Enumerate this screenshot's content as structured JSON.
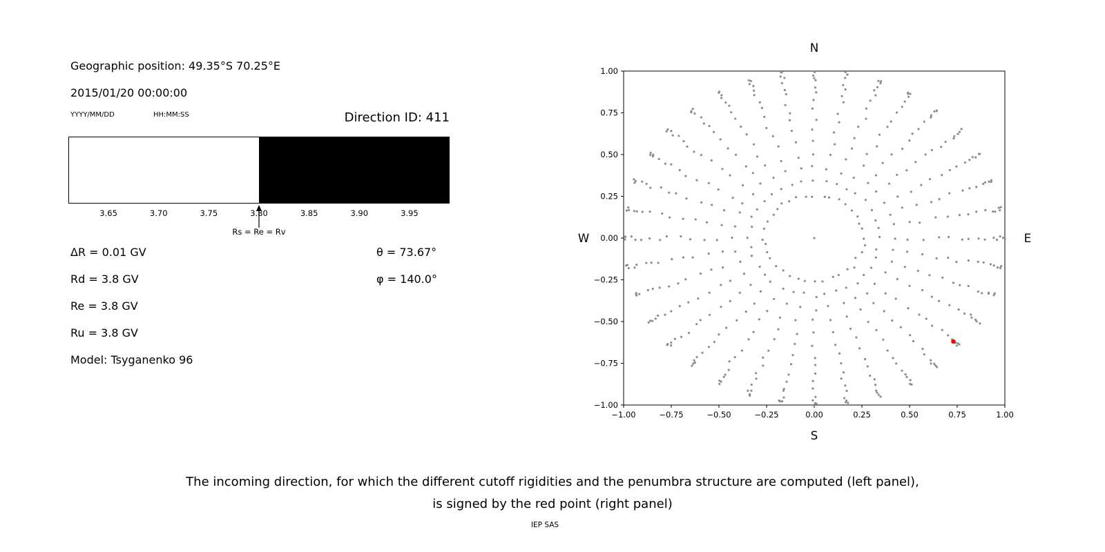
{
  "page": {
    "background": "#ffffff",
    "credit": "IEP SAS"
  },
  "left_panel": {
    "geo_position": "Geographic position: 49.35°S 70.25°E",
    "datetime": "2015/01/20 00:00:00",
    "date_format_label": "YYYY/MM/DD",
    "time_format_label": "HH:MM:SS",
    "direction_id": "Direction ID: 411",
    "params": {
      "delta_r": "ΔR = 0.01 GV",
      "rd": "Rd = 3.8 GV",
      "re": "Re = 3.8 GV",
      "ru": "Ru = 3.8 GV",
      "model": "Model: Tsyganenko 96",
      "theta": "θ = 73.67°",
      "phi": "φ = 140.0°"
    }
  },
  "right_panel": {
    "compass": {
      "north": "N",
      "south": "S",
      "west": "W",
      "east": "E"
    }
  },
  "caption": {
    "line1": "The incoming direction, for which the different cutoff rigidities and the penumbra structure are computed (left panel),",
    "line2": "is signed by the red point (right panel)"
  },
  "chart_data": [
    {
      "type": "area",
      "name": "penumbra-structure",
      "x_range": [
        3.61,
        3.99
      ],
      "tick_values": [
        3.65,
        3.7,
        3.75,
        3.8,
        3.85,
        3.9,
        3.95
      ],
      "tick_labels": [
        "3.65",
        "3.70",
        "3.75",
        "3.80",
        "3.85",
        "3.90",
        "3.95"
      ],
      "regions": [
        {
          "from": 3.61,
          "to": 3.8,
          "color": "#ffffff"
        },
        {
          "from": 3.8,
          "to": 3.99,
          "color": "#000000"
        }
      ],
      "annotation": {
        "x": 3.8,
        "label": "Rs = Re = Rv"
      }
    },
    {
      "type": "scatter",
      "name": "incoming-directions",
      "xlim": [
        -1.0,
        1.0
      ],
      "ylim": [
        -1.0,
        1.0
      ],
      "x_tick_values": [
        -1.0,
        -0.75,
        -0.5,
        -0.25,
        0.0,
        0.25,
        0.5,
        0.75,
        1.0
      ],
      "x_tick_labels": [
        "−1.00",
        "−0.75",
        "−0.50",
        "−0.25",
        "0.00",
        "0.25",
        "0.50",
        "0.75",
        "1.00"
      ],
      "y_tick_values": [
        -1.0,
        -0.75,
        -0.5,
        -0.25,
        0.0,
        0.25,
        0.5,
        0.75,
        1.0
      ],
      "y_tick_labels": [
        "−1.00",
        "−0.75",
        "−0.50",
        "−0.25",
        "0.00",
        "0.25",
        "0.50",
        "0.75",
        "1.00"
      ],
      "dot_color": "#8c8c8c",
      "grid_pattern": {
        "azimuth_start_deg": 0,
        "azimuth_step_deg": 10,
        "n_azimuths": 36,
        "zenith_angles_deg": [
          15,
          20,
          25,
          30,
          35,
          40,
          45,
          50,
          55,
          60,
          65,
          70,
          75,
          80,
          85,
          90
        ],
        "radius_formula": "sin(zenith)",
        "jitter": 0.012,
        "center_point": [
          0,
          0
        ]
      },
      "highlight_point": {
        "x": 0.73,
        "y": -0.62,
        "color": "#ff0000"
      }
    }
  ]
}
